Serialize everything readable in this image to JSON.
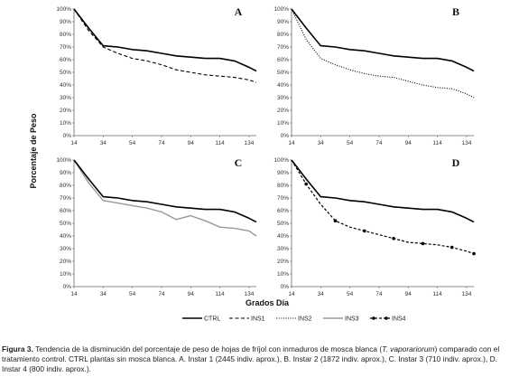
{
  "chart_data": {
    "type": "line",
    "ylabel": "Porcentaje de Peso",
    "xlabel": "Grados Día",
    "x": [
      14,
      24,
      34,
      44,
      54,
      64,
      74,
      84,
      94,
      104,
      114,
      124,
      134,
      139
    ],
    "x_ticks": [
      "14",
      "34",
      "54",
      "74",
      "94",
      "114",
      "134"
    ],
    "y_ticks": [
      "0%",
      "10%",
      "20%",
      "30%",
      "40%",
      "50%",
      "60%",
      "70%",
      "80%",
      "90%",
      "100%"
    ],
    "xlim": [
      14,
      139
    ],
    "ylim": [
      0,
      100
    ],
    "grid": false,
    "legend_position": "bottom",
    "legend": [
      {
        "label": "CTRL",
        "color": "#000000",
        "style": "solid"
      },
      {
        "label": "INS1",
        "color": "#000000",
        "style": "dashed"
      },
      {
        "label": "INS2",
        "color": "#000000",
        "style": "dotted"
      },
      {
        "label": "INS3",
        "color": "#999999",
        "style": "solid"
      },
      {
        "label": "INS4",
        "color": "#000000",
        "style": "dash-dot-markers"
      }
    ],
    "panels": [
      {
        "letter": "A",
        "series": [
          {
            "name": "CTRL",
            "values": [
              100,
              85,
              71,
              70,
              68,
              67,
              65,
              63,
              62,
              61,
              61,
              59,
              54,
              51
            ]
          },
          {
            "name": "INS1",
            "values": [
              100,
              83,
              70,
              65,
              61,
              59,
              56,
              52,
              50,
              48,
              47,
              46,
              44,
              42
            ]
          }
        ]
      },
      {
        "letter": "B",
        "series": [
          {
            "name": "CTRL",
            "values": [
              100,
              85,
              71,
              70,
              68,
              67,
              65,
              63,
              62,
              61,
              61,
              59,
              54,
              51
            ]
          },
          {
            "name": "INS2",
            "values": [
              100,
              76,
              61,
              56,
              52,
              49,
              47,
              46,
              43,
              40,
              38,
              37,
              33,
              30
            ]
          }
        ]
      },
      {
        "letter": "C",
        "series": [
          {
            "name": "CTRL",
            "values": [
              100,
              85,
              71,
              70,
              68,
              67,
              65,
              63,
              62,
              61,
              61,
              59,
              54,
              51
            ]
          },
          {
            "name": "INS3",
            "values": [
              100,
              82,
              68,
              66,
              64,
              62,
              59,
              53,
              56,
              52,
              47,
              46,
              44,
              40
            ]
          }
        ]
      },
      {
        "letter": "D",
        "series": [
          {
            "name": "CTRL",
            "values": [
              100,
              85,
              71,
              70,
              68,
              67,
              65,
              63,
              62,
              61,
              61,
              59,
              54,
              51
            ]
          },
          {
            "name": "INS4",
            "values": [
              100,
              81,
              65,
              52,
              47,
              44,
              41,
              38,
              35,
              34,
              33,
              31,
              28,
              26
            ]
          }
        ]
      }
    ]
  },
  "caption": {
    "label": "Figura 3.",
    "text_before_species": " Tendencia de la disminución del porcentaje de peso de hojas de fríjol con inmaduros de mosca blanca (",
    "species": "T. vaporariorum",
    "text_after_species": ") comparado con el tratamiento control. CTRL plantas sin mosca blanca. A. Instar 1 (2445 indiv. aprox.), B. Instar 2 (1872 indiv. aprox.), C. Instar 3 (710 indiv. aprox.), D. Instar 4 (800 indiv. aprox.)."
  }
}
